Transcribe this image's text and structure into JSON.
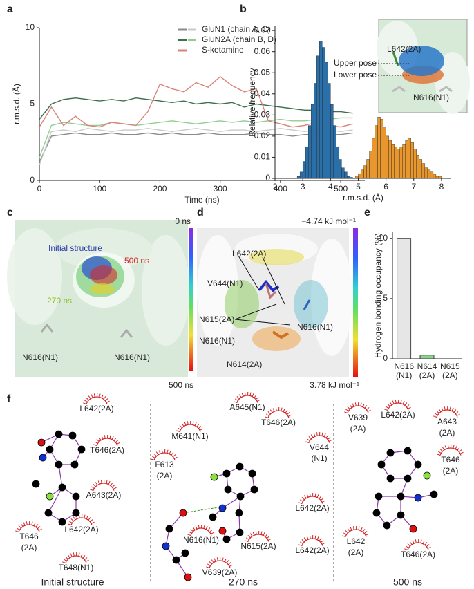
{
  "panel_labels": [
    "a",
    "b",
    "c",
    "d",
    "e",
    "f"
  ],
  "chart_data": [
    {
      "type": "line",
      "xlabel": "Time (ns)",
      "ylabel": "r.m.s.d. (Å)",
      "xlim": [
        0,
        540
      ],
      "xticks": [
        0,
        100,
        200,
        300,
        400,
        500
      ],
      "ylim": [
        0,
        10
      ],
      "yticks": [
        0,
        5,
        10
      ],
      "x": [
        0,
        20,
        40,
        60,
        80,
        100,
        120,
        140,
        160,
        180,
        200,
        220,
        240,
        260,
        280,
        300,
        320,
        340,
        360,
        380,
        400,
        420,
        440,
        460,
        480,
        500,
        520
      ],
      "series": [
        {
          "name": "GluN1 (chain A, C)",
          "lines": [
            {
              "color": "#8a8a8a",
              "values": [
                1.2,
                2.9,
                3.0,
                3.1,
                3.0,
                3.0,
                3.1,
                3.0,
                3.0,
                3.1,
                3.0,
                3.1,
                3.0,
                3.0,
                3.1,
                3.0,
                3.0,
                3.0,
                3.1,
                3.0,
                3.0,
                2.9,
                3.0,
                3.0,
                3.0,
                3.0,
                3.1
              ]
            },
            {
              "color": "#c9c9c9",
              "values": [
                1.0,
                3.2,
                3.3,
                3.2,
                3.4,
                3.3,
                3.2,
                3.3,
                3.3,
                3.4,
                3.3,
                3.2,
                3.3,
                3.4,
                3.3,
                3.2,
                3.3,
                3.3,
                3.2,
                3.3,
                3.4,
                3.3,
                3.2,
                3.3,
                3.3,
                3.2,
                3.3
              ]
            }
          ]
        },
        {
          "name": "GluN2A (chain B, D)",
          "lines": [
            {
              "color": "#3d6e4e",
              "values": [
                4.0,
                5.0,
                5.3,
                5.4,
                5.3,
                5.2,
                5.3,
                5.2,
                5.4,
                5.3,
                5.2,
                5.1,
                5.2,
                5.0,
                5.1,
                5.0,
                5.1,
                4.8,
                5.0,
                4.9,
                4.8,
                4.7,
                4.6,
                4.6,
                4.5,
                4.5,
                4.4
              ]
            },
            {
              "color": "#93cc93",
              "values": [
                1.5,
                3.6,
                3.8,
                3.7,
                3.6,
                3.6,
                3.8,
                3.7,
                3.6,
                3.7,
                3.8,
                3.9,
                3.8,
                3.7,
                3.8,
                3.9,
                3.8,
                3.9,
                3.8,
                3.9,
                4.0,
                3.9,
                3.9,
                4.0,
                4.0,
                4.1,
                4.1
              ]
            }
          ]
        },
        {
          "name": "S-ketamine",
          "lines": [
            {
              "color": "#d98277",
              "values": [
                3.5,
                4.8,
                3.6,
                4.2,
                3.6,
                3.5,
                3.8,
                3.7,
                3.6,
                4.5,
                6.3,
                6.0,
                5.8,
                6.4,
                6.1,
                6.8,
                6.2,
                5.8,
                6.0,
                3.9,
                3.7,
                3.5,
                3.6,
                3.8,
                3.6,
                3.5,
                3.7
              ]
            }
          ]
        }
      ]
    },
    {
      "type": "histogram",
      "xlabel": "r.m.s.d. (Å)",
      "ylabel": "Relative frequency",
      "xlim": [
        2,
        8.35
      ],
      "xticks": [
        2,
        3,
        4,
        5,
        6,
        7,
        8
      ],
      "ylim": [
        0,
        0.072
      ],
      "yticks": [
        0,
        0.01,
        0.02,
        0.03,
        0.04,
        0.05,
        0.06,
        0.07
      ],
      "series": [
        {
          "color": "#2a6fa8",
          "bins": [
            2.8,
            2.9,
            3.0,
            3.1,
            3.2,
            3.3,
            3.4,
            3.5,
            3.6,
            3.7,
            3.8,
            3.9,
            4.0,
            4.1,
            4.2,
            4.3,
            4.4,
            4.5,
            4.6,
            4.7,
            4.8
          ],
          "values": [
            0.001,
            0.003,
            0.008,
            0.015,
            0.025,
            0.035,
            0.045,
            0.058,
            0.065,
            0.062,
            0.055,
            0.045,
            0.035,
            0.025,
            0.015,
            0.009,
            0.005,
            0.003,
            0.001,
            0.0005
          ]
        },
        {
          "color": "#e8962e",
          "bins": [
            4.9,
            5.0,
            5.1,
            5.2,
            5.3,
            5.4,
            5.5,
            5.6,
            5.7,
            5.8,
            5.9,
            6.0,
            6.1,
            6.2,
            6.3,
            6.4,
            6.5,
            6.6,
            6.7,
            6.8,
            6.9,
            7.0,
            7.1,
            7.2,
            7.3,
            7.4,
            7.5,
            7.6,
            7.7,
            7.8,
            7.9,
            8.0
          ],
          "values": [
            0.001,
            0.002,
            0.004,
            0.006,
            0.009,
            0.013,
            0.019,
            0.025,
            0.029,
            0.028,
            0.024,
            0.02,
            0.018,
            0.016,
            0.015,
            0.014,
            0.015,
            0.016,
            0.018,
            0.019,
            0.017,
            0.014,
            0.011,
            0.009,
            0.007,
            0.005,
            0.004,
            0.003,
            0.002,
            0.001,
            0.001
          ]
        }
      ]
    },
    {
      "type": "bar",
      "ylabel": "Hydrogen bonding occupancy (%)",
      "ylim": [
        0,
        10.5
      ],
      "yticks": [
        0,
        5,
        10
      ],
      "categories": [
        [
          "N616",
          "(N1)"
        ],
        [
          "N614",
          "(2A)"
        ],
        [
          "N615",
          "(2A)"
        ]
      ],
      "values": [
        10,
        0.3,
        0
      ],
      "colors": [
        "#e6e6e6",
        "#8fcf8f",
        "#f0c8c8"
      ]
    }
  ],
  "panel_b_inset": {
    "upper": "Upper pose",
    "lower": "Lower pose",
    "residue_top": "L642(2A)",
    "residue_bottom": "N616(N1)"
  },
  "panel_c": {
    "colorbar_top": "0 ns",
    "colorbar_bottom": "500 ns",
    "labels": [
      "Initial structure",
      "500 ns",
      "270 ns",
      "N616(N1)",
      "N616(N1)"
    ]
  },
  "panel_d": {
    "colorbar_top": "−4.74 kJ mol⁻¹",
    "colorbar_bottom": "3.78 kJ mol⁻¹",
    "labels": [
      "L642(2A)",
      "V644(N1)",
      "N615(2A)",
      "N616(N1)",
      "N616(N1)",
      "N614(2A)"
    ]
  },
  "panel_f": [
    {
      "caption": "Initial structure",
      "residues": [
        [
          "L642(2A)"
        ],
        [
          "T646(2A)"
        ],
        [
          "A643(2A)"
        ],
        [
          "L642(2A)"
        ],
        [
          "T646",
          "(2A)"
        ],
        [
          "T648(N1)"
        ]
      ]
    },
    {
      "caption": "270 ns",
      "residues": [
        [
          "A645(N1)"
        ],
        [
          "T646(2A)"
        ],
        [
          "M641(N1)"
        ],
        [
          "V644",
          "(N1)"
        ],
        [
          "F613",
          "(2A)"
        ],
        [
          "L642(2A)"
        ],
        [
          "N616(N1)"
        ],
        [
          "N615(2A)"
        ],
        [
          "L642(2A)"
        ],
        [
          "V639(2A)"
        ]
      ]
    },
    {
      "caption": "500 ns",
      "residues": [
        [
          "V639",
          "(2A)"
        ],
        [
          "L642(2A)"
        ],
        [
          "A643",
          "(2A)"
        ],
        [
          "T646",
          "(2A)"
        ],
        [
          "L642",
          "(2A)"
        ],
        [
          "T646(2A)"
        ]
      ]
    }
  ]
}
